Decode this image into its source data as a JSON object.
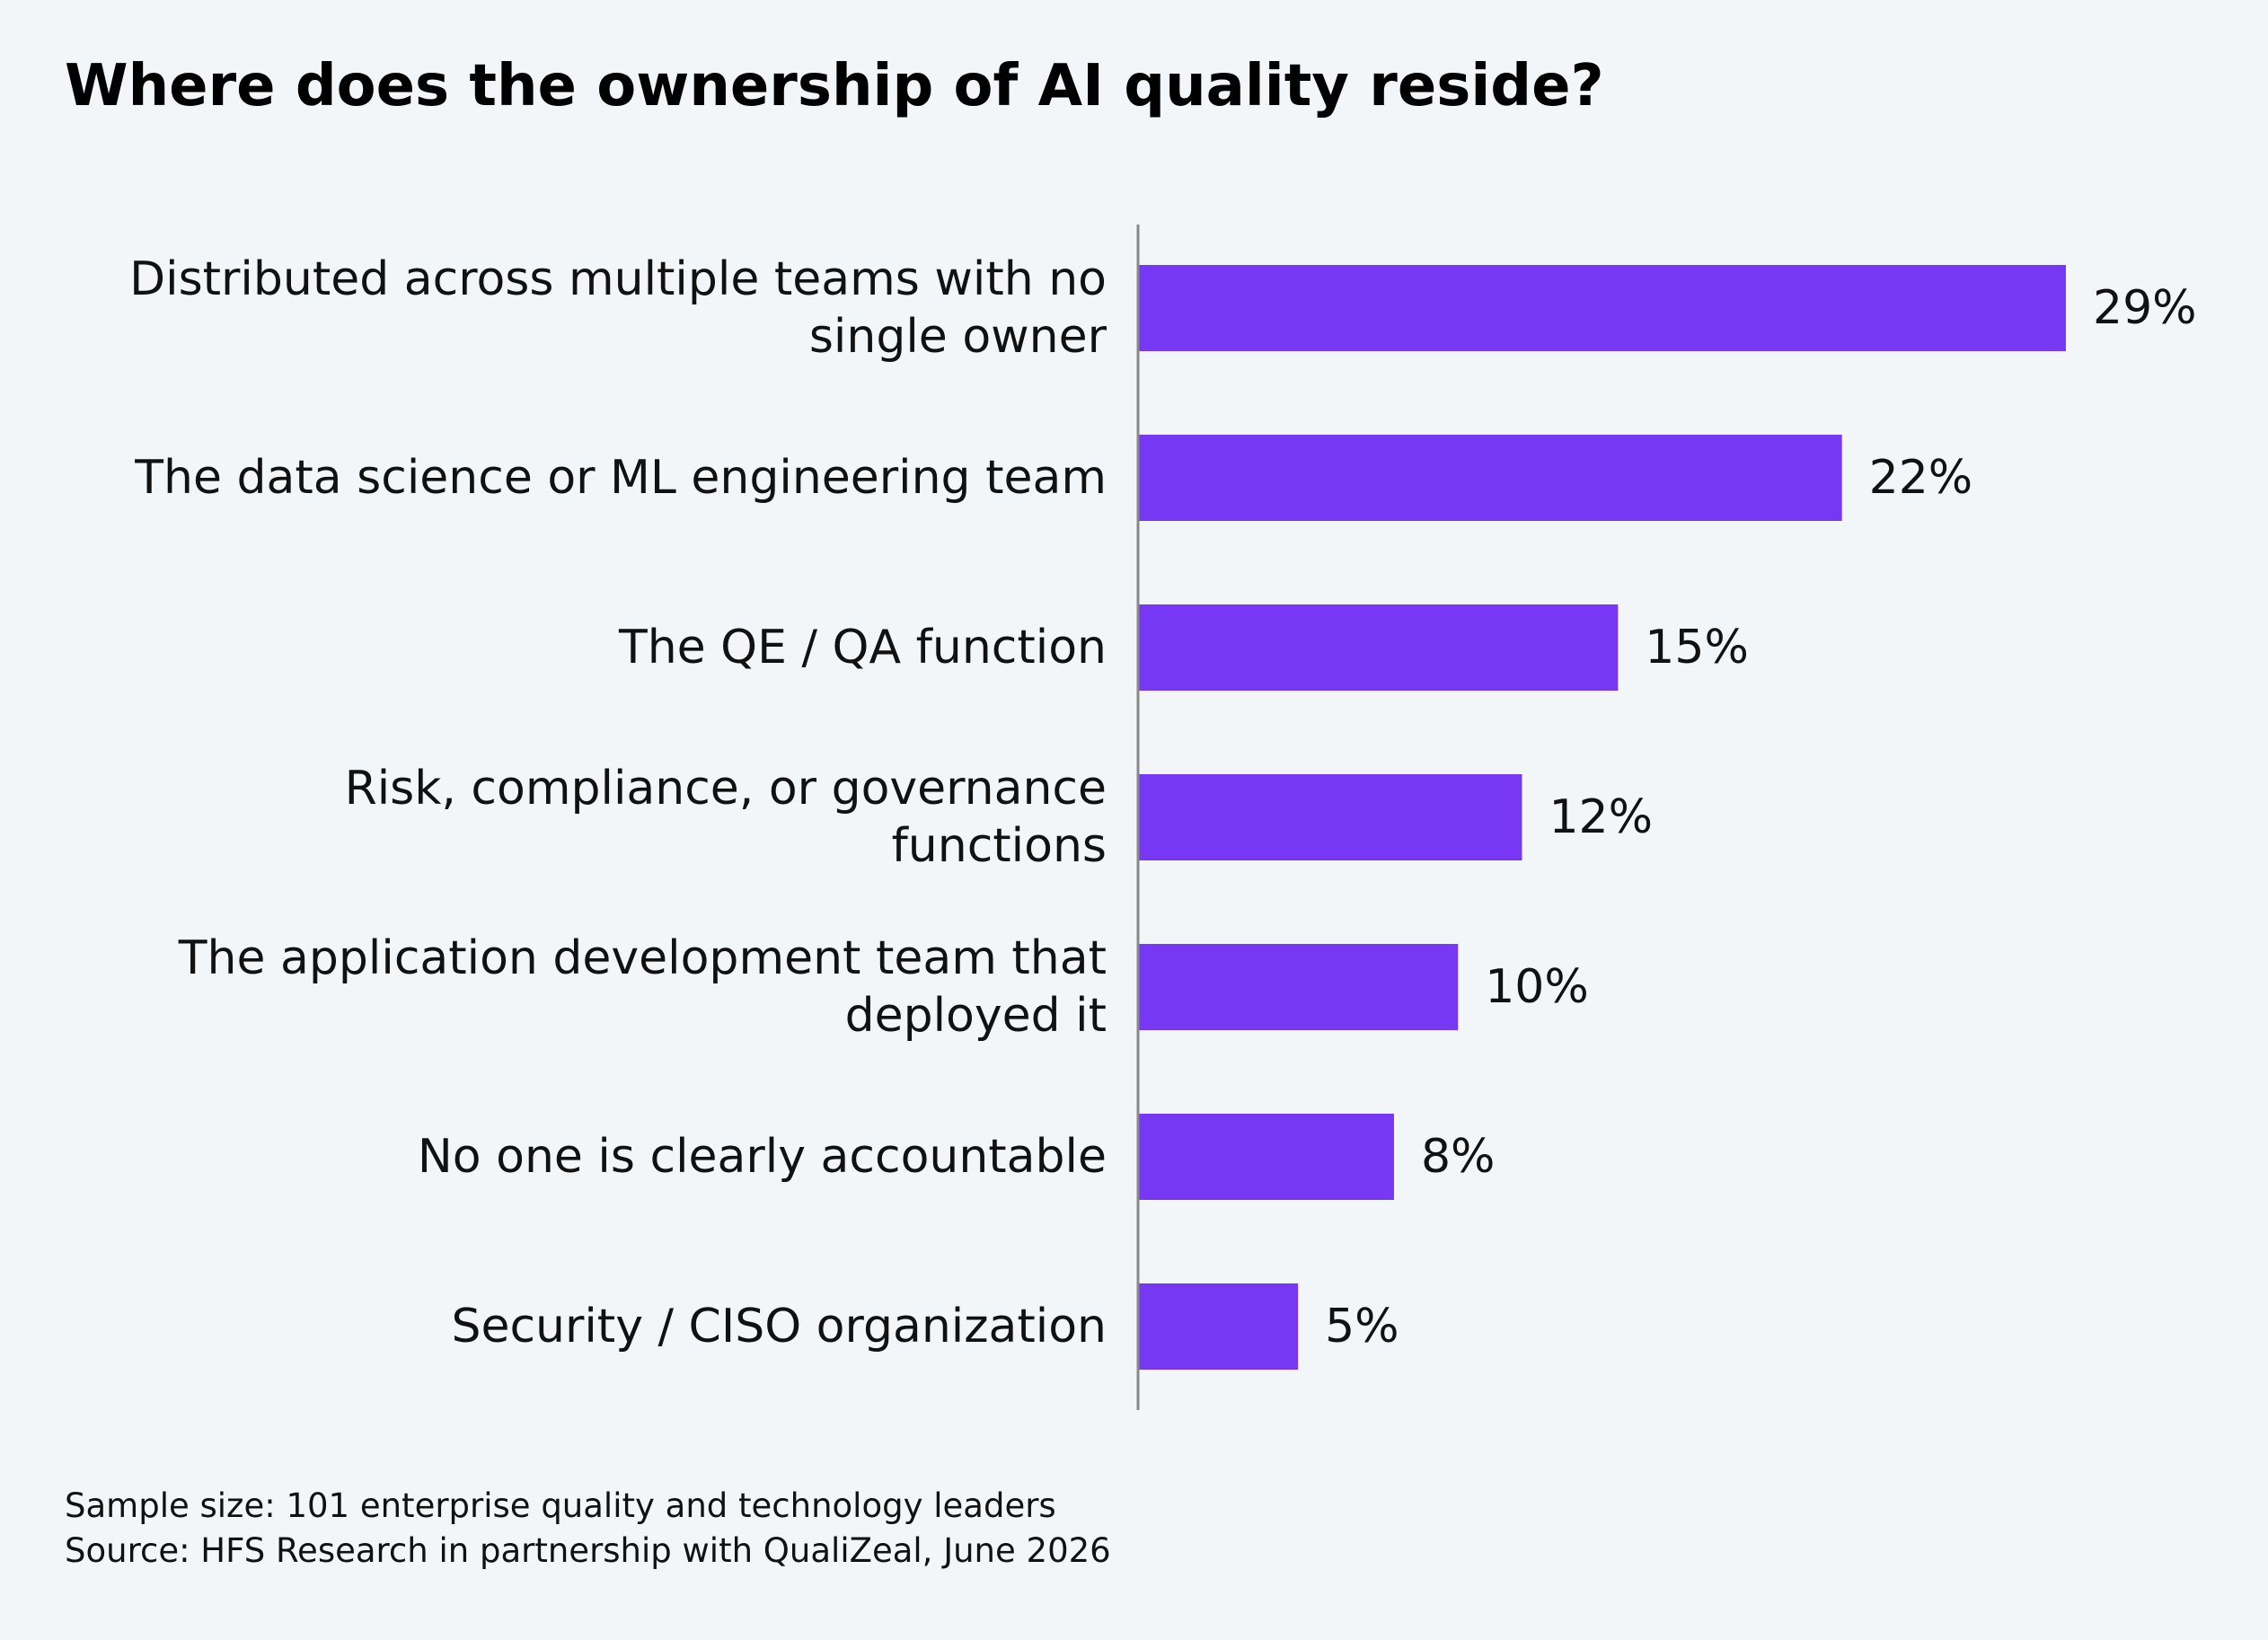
{
  "chart_data": {
    "type": "bar",
    "orientation": "horizontal",
    "title": "Where does the ownership of AI quality reside?",
    "categories": [
      [
        "Distributed across multiple teams with no",
        "single owner"
      ],
      [
        "The data science or ML engineering team"
      ],
      [
        "The QE / QA function"
      ],
      [
        "Risk, compliance, or governance",
        "functions"
      ],
      [
        "The application development team that",
        "deployed it"
      ],
      [
        "No one is clearly accountable"
      ],
      [
        "Security / CISO organization"
      ]
    ],
    "values": [
      29,
      22,
      15,
      12,
      10,
      8,
      5
    ],
    "value_labels": [
      "29%",
      "22%",
      "15%",
      "12%",
      "10%",
      "8%",
      "5%"
    ],
    "unit": "%",
    "xlim": [
      0,
      29
    ],
    "grid": false,
    "legend": "none",
    "bar_color": "#7638f2",
    "axis_color": "#888888"
  },
  "footer": {
    "sample_size": "Sample size: 101 enterprise quality and technology leaders",
    "source": "Source: HFS Research in partnership with QualiZeal, June 2026"
  }
}
